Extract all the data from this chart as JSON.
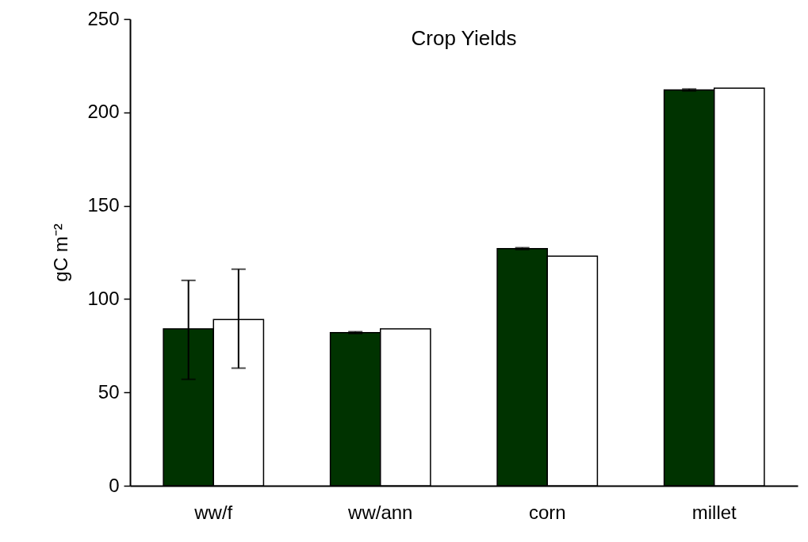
{
  "chart_data": {
    "type": "bar",
    "title": "Crop Yields",
    "ylabel": "gC m⁻²",
    "categories": [
      "ww/f",
      "ww/ann",
      "corn",
      "millet"
    ],
    "series": [
      {
        "color": "#003300",
        "values": [
          84,
          82,
          127,
          212
        ],
        "errors": [
          [
            57,
            110
          ],
          0.5,
          0.5,
          0.5
        ]
      },
      {
        "color": "#ffffff",
        "values": [
          89,
          84,
          123,
          213
        ],
        "errors": [
          [
            63,
            116
          ],
          null,
          null,
          null
        ]
      }
    ],
    "ylim": [
      0,
      250
    ],
    "yticks": [
      0,
      50,
      100,
      150,
      200,
      250
    ],
    "grid": false,
    "legend": false
  }
}
